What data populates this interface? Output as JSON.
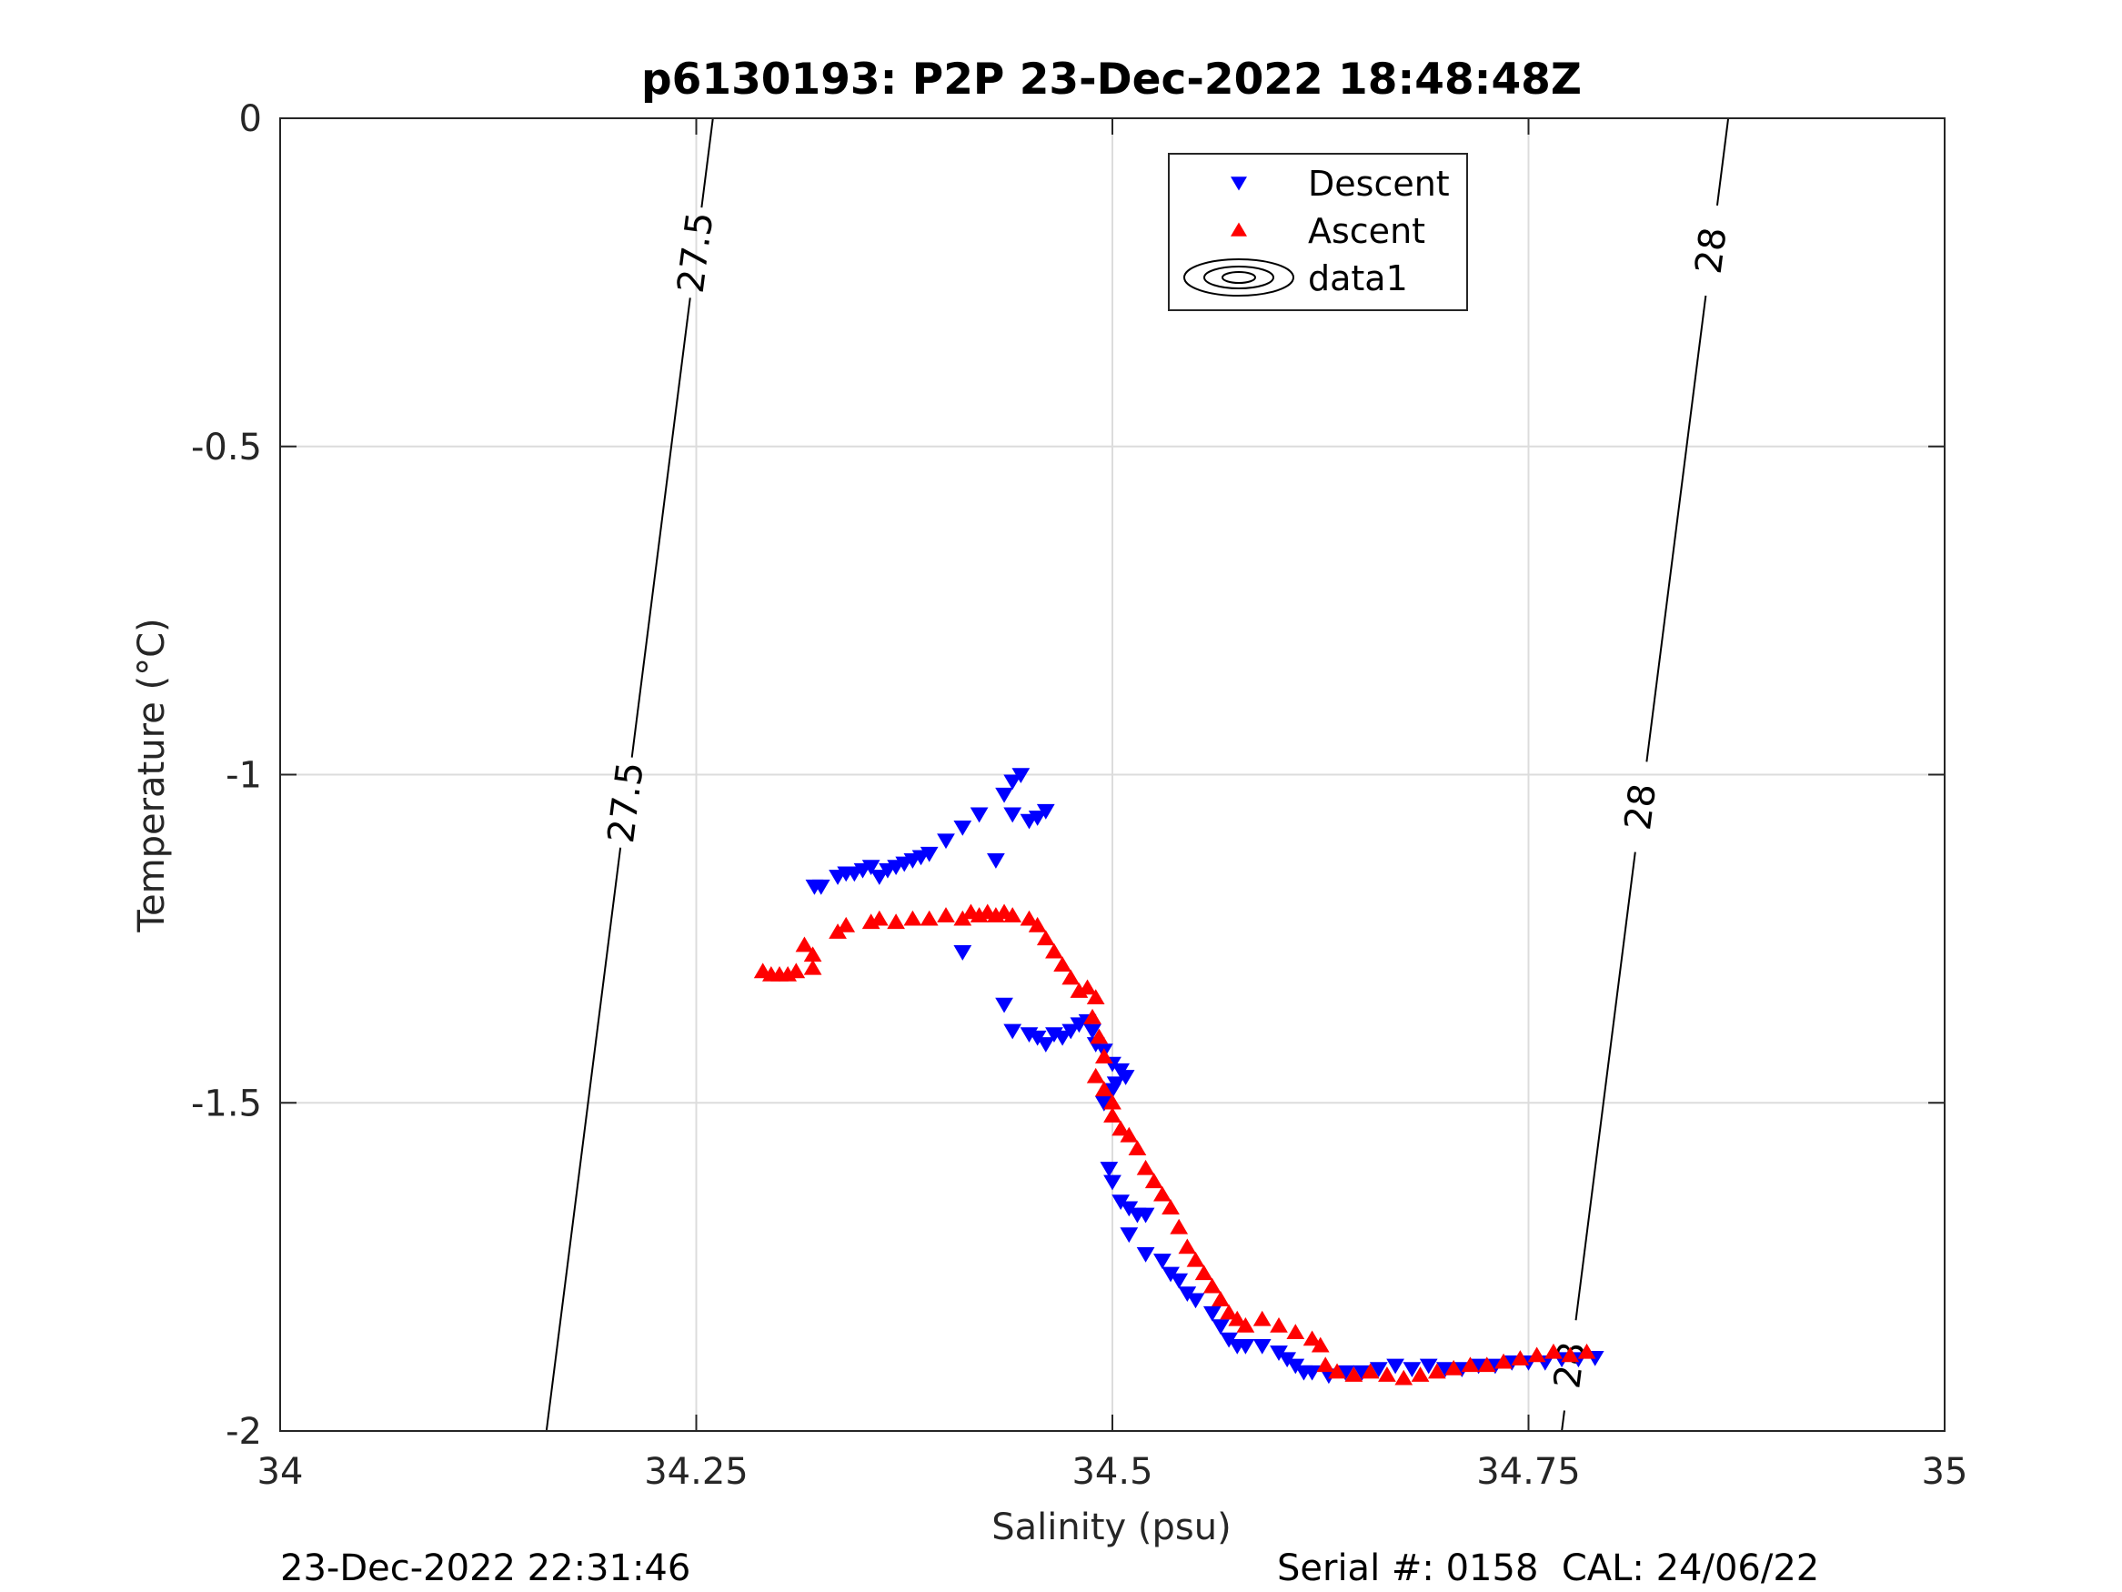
{
  "footer": {
    "timestamp": "23-Dec-2022 22:31:46",
    "serial": "Serial #: 0158  CAL: 24/06/22"
  },
  "chart_data": {
    "type": "scatter",
    "title": "p6130193: P2P 23-Dec-2022 18:48:48Z",
    "xlabel": "Salinity (psu)",
    "ylabel": "Temperature (°C)",
    "xlim": [
      34,
      35
    ],
    "ylim": [
      -2,
      0
    ],
    "xticks": [
      34,
      34.25,
      34.5,
      34.75,
      35
    ],
    "xtick_labels": [
      "34",
      "34.25",
      "34.5",
      "34.75",
      "35"
    ],
    "yticks": [
      0,
      -0.5,
      -1,
      -1.5,
      -2
    ],
    "ytick_labels": [
      "0",
      "-0.5",
      "-1",
      "-1.5",
      "-2"
    ],
    "grid": true,
    "legend": {
      "position": "top-center",
      "entries": [
        "Descent",
        "Ascent",
        "data1"
      ]
    },
    "colors": {
      "descent": "#0000ff",
      "ascent": "#ff0000",
      "contour": "#000000",
      "grid": "#dcdcdc"
    },
    "series": [
      {
        "name": "Descent",
        "marker": "triangle-down",
        "points": [
          [
            34.321,
            -1.17
          ],
          [
            34.325,
            -1.17
          ],
          [
            34.335,
            -1.155
          ],
          [
            34.34,
            -1.15
          ],
          [
            34.345,
            -1.15
          ],
          [
            34.35,
            -1.145
          ],
          [
            34.355,
            -1.14
          ],
          [
            34.36,
            -1.155
          ],
          [
            34.365,
            -1.145
          ],
          [
            34.37,
            -1.14
          ],
          [
            34.375,
            -1.135
          ],
          [
            34.38,
            -1.13
          ],
          [
            34.385,
            -1.125
          ],
          [
            34.39,
            -1.12
          ],
          [
            34.4,
            -1.1
          ],
          [
            34.41,
            -1.08
          ],
          [
            34.42,
            -1.06
          ],
          [
            34.435,
            -1.03
          ],
          [
            34.44,
            -1.01
          ],
          [
            34.445,
            -1.0
          ],
          [
            34.43,
            -1.13
          ],
          [
            34.44,
            -1.06
          ],
          [
            34.45,
            -1.07
          ],
          [
            34.455,
            -1.065
          ],
          [
            34.46,
            -1.055
          ],
          [
            34.41,
            -1.27
          ],
          [
            34.435,
            -1.35
          ],
          [
            34.44,
            -1.39
          ],
          [
            34.45,
            -1.395
          ],
          [
            34.455,
            -1.4
          ],
          [
            34.46,
            -1.41
          ],
          [
            34.465,
            -1.395
          ],
          [
            34.47,
            -1.4
          ],
          [
            34.475,
            -1.39
          ],
          [
            34.48,
            -1.38
          ],
          [
            34.485,
            -1.375
          ],
          [
            34.488,
            -1.39
          ],
          [
            34.49,
            -1.41
          ],
          [
            34.495,
            -1.42
          ],
          [
            34.5,
            -1.44
          ],
          [
            34.502,
            -1.47
          ],
          [
            34.505,
            -1.45
          ],
          [
            34.508,
            -1.46
          ],
          [
            34.5,
            -1.48
          ],
          [
            34.495,
            -1.5
          ],
          [
            34.498,
            -1.6
          ],
          [
            34.5,
            -1.62
          ],
          [
            34.505,
            -1.65
          ],
          [
            34.51,
            -1.66
          ],
          [
            34.515,
            -1.67
          ],
          [
            34.52,
            -1.67
          ],
          [
            34.51,
            -1.7
          ],
          [
            34.52,
            -1.73
          ],
          [
            34.53,
            -1.74
          ],
          [
            34.535,
            -1.76
          ],
          [
            34.54,
            -1.77
          ],
          [
            34.545,
            -1.79
          ],
          [
            34.55,
            -1.8
          ],
          [
            34.56,
            -1.82
          ],
          [
            34.565,
            -1.84
          ],
          [
            34.57,
            -1.86
          ],
          [
            34.575,
            -1.87
          ],
          [
            34.58,
            -1.87
          ],
          [
            34.59,
            -1.87
          ],
          [
            34.6,
            -1.88
          ],
          [
            34.605,
            -1.89
          ],
          [
            34.61,
            -1.9
          ],
          [
            34.615,
            -1.91
          ],
          [
            34.62,
            -1.91
          ],
          [
            34.63,
            -1.915
          ],
          [
            34.64,
            -1.91
          ],
          [
            34.65,
            -1.91
          ],
          [
            34.66,
            -1.905
          ],
          [
            34.67,
            -1.9
          ],
          [
            34.68,
            -1.905
          ],
          [
            34.69,
            -1.9
          ],
          [
            34.7,
            -1.905
          ],
          [
            34.71,
            -1.905
          ],
          [
            34.72,
            -1.9
          ],
          [
            34.73,
            -1.9
          ],
          [
            34.74,
            -1.895
          ],
          [
            34.75,
            -1.895
          ],
          [
            34.76,
            -1.895
          ],
          [
            34.77,
            -1.89
          ],
          [
            34.78,
            -1.89
          ],
          [
            34.79,
            -1.888
          ]
        ]
      },
      {
        "name": "Ascent",
        "marker": "triangle-up",
        "points": [
          [
            34.29,
            -1.3
          ],
          [
            34.295,
            -1.305
          ],
          [
            34.3,
            -1.305
          ],
          [
            34.305,
            -1.305
          ],
          [
            34.31,
            -1.3
          ],
          [
            34.315,
            -1.26
          ],
          [
            34.32,
            -1.275
          ],
          [
            34.32,
            -1.295
          ],
          [
            34.335,
            -1.24
          ],
          [
            34.34,
            -1.23
          ],
          [
            34.355,
            -1.225
          ],
          [
            34.36,
            -1.22
          ],
          [
            34.37,
            -1.225
          ],
          [
            34.38,
            -1.22
          ],
          [
            34.39,
            -1.22
          ],
          [
            34.4,
            -1.215
          ],
          [
            34.41,
            -1.22
          ],
          [
            34.415,
            -1.21
          ],
          [
            34.42,
            -1.215
          ],
          [
            34.425,
            -1.21
          ],
          [
            34.43,
            -1.215
          ],
          [
            34.435,
            -1.21
          ],
          [
            34.44,
            -1.215
          ],
          [
            34.45,
            -1.22
          ],
          [
            34.455,
            -1.23
          ],
          [
            34.46,
            -1.25
          ],
          [
            34.465,
            -1.27
          ],
          [
            34.47,
            -1.29
          ],
          [
            34.475,
            -1.31
          ],
          [
            34.48,
            -1.33
          ],
          [
            34.485,
            -1.325
          ],
          [
            34.49,
            -1.34
          ],
          [
            34.488,
            -1.37
          ],
          [
            34.492,
            -1.4
          ],
          [
            34.495,
            -1.43
          ],
          [
            34.49,
            -1.46
          ],
          [
            34.495,
            -1.48
          ],
          [
            34.5,
            -1.5
          ],
          [
            34.5,
            -1.52
          ],
          [
            34.505,
            -1.54
          ],
          [
            34.51,
            -1.55
          ],
          [
            34.515,
            -1.57
          ],
          [
            34.52,
            -1.6
          ],
          [
            34.525,
            -1.62
          ],
          [
            34.53,
            -1.64
          ],
          [
            34.535,
            -1.66
          ],
          [
            34.54,
            -1.69
          ],
          [
            34.545,
            -1.72
          ],
          [
            34.55,
            -1.74
          ],
          [
            34.555,
            -1.76
          ],
          [
            34.56,
            -1.78
          ],
          [
            34.565,
            -1.8
          ],
          [
            34.57,
            -1.82
          ],
          [
            34.575,
            -1.83
          ],
          [
            34.58,
            -1.84
          ],
          [
            34.59,
            -1.83
          ],
          [
            34.6,
            -1.84
          ],
          [
            34.61,
            -1.85
          ],
          [
            34.62,
            -1.86
          ],
          [
            34.625,
            -1.87
          ],
          [
            34.628,
            -1.9
          ],
          [
            34.635,
            -1.91
          ],
          [
            34.645,
            -1.915
          ],
          [
            34.655,
            -1.91
          ],
          [
            34.665,
            -1.915
          ],
          [
            34.675,
            -1.92
          ],
          [
            34.685,
            -1.915
          ],
          [
            34.695,
            -1.91
          ],
          [
            34.705,
            -1.905
          ],
          [
            34.715,
            -1.9
          ],
          [
            34.725,
            -1.9
          ],
          [
            34.735,
            -1.895
          ],
          [
            34.745,
            -1.89
          ],
          [
            34.755,
            -1.885
          ],
          [
            34.765,
            -1.88
          ],
          [
            34.775,
            -1.885
          ],
          [
            34.785,
            -1.88
          ]
        ]
      },
      {
        "name": "data1",
        "type": "contour",
        "levels": [
          {
            "level": "27.5",
            "line": [
              [
                34.26,
                0
              ],
              [
                34.16,
                -2
              ]
            ],
            "label_points": [
              [
                34.235,
                -0.2
              ],
              [
                34.2,
                -1.04
              ]
            ]
          },
          {
            "level": "28",
            "line": [
              [
                34.87,
                0
              ],
              [
                34.77,
                -2
              ]
            ],
            "label_points": [
              [
                34.855,
                -0.2
              ],
              [
                34.82,
                -1.05
              ],
              [
                34.775,
                -1.9
              ]
            ]
          }
        ]
      }
    ]
  }
}
